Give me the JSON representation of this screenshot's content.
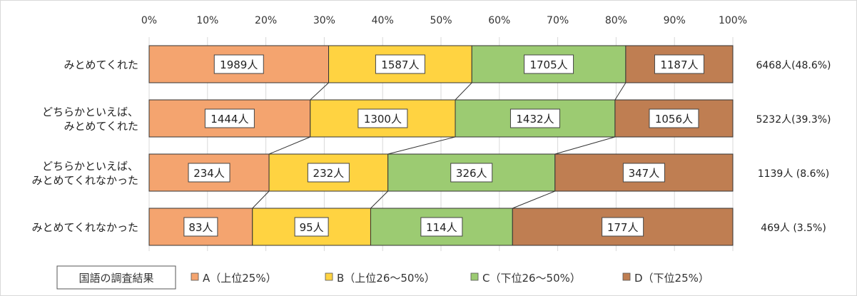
{
  "chart_data": {
    "type": "bar",
    "orientation": "horizontal",
    "stacked": "percent",
    "xlim": [
      0,
      100
    ],
    "x_ticks": [
      "0%",
      "10%",
      "20%",
      "30%",
      "40%",
      "50%",
      "60%",
      "70%",
      "80%",
      "90%",
      "100%"
    ],
    "categories": [
      "みとめてくれた",
      "どちらかといえば、\nみとめてくれた",
      "どちらかといえば、\nみとめてくれなかった",
      "みとめてくれなかった"
    ],
    "series": [
      {
        "name": "A（上位25%）",
        "color": "#F4A46F",
        "values": [
          1989,
          1444,
          234,
          83
        ],
        "labels": [
          "1989人",
          "1444人",
          "234人",
          "83人"
        ]
      },
      {
        "name": "B（上位26～50%）",
        "color": "#FFD341",
        "values": [
          1587,
          1300,
          232,
          95
        ],
        "labels": [
          "1587人",
          "1300人",
          "232人",
          "95人"
        ]
      },
      {
        "name": "C（下位26～50%）",
        "color": "#9CCB72",
        "values": [
          1705,
          1432,
          326,
          114
        ],
        "labels": [
          "1705人",
          "1432人",
          "326人",
          "114人"
        ]
      },
      {
        "name": "D（下位25%）",
        "color": "#BF7E52",
        "values": [
          1187,
          1056,
          347,
          177
        ],
        "labels": [
          "1187人",
          "1056人",
          "347人",
          "177人"
        ]
      }
    ],
    "totals": [
      "6468人(48.6%)",
      "5232人(39.3%)",
      "1139人 (8.6%)",
      "469人 (3.5%)"
    ],
    "legend": {
      "title": "国語の調査結果",
      "position": "bottom"
    },
    "series_lines": true,
    "grid": true
  }
}
